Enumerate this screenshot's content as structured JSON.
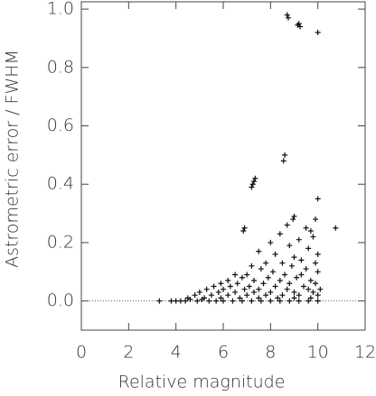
{
  "chart_data": {
    "type": "scatter",
    "xlabel": "Relative magnitude",
    "ylabel": "Astrometric error / FWHM",
    "xlim": [
      0,
      12
    ],
    "ylim": [
      -0.1,
      1.025
    ],
    "xticks": [
      0,
      2,
      4,
      6,
      8,
      10,
      12
    ],
    "yticks": [
      {
        "value": 0,
        "label": "0.0"
      },
      0.2,
      0.4,
      0.6,
      0.8,
      {
        "value": 1,
        "label": "1.0"
      }
    ],
    "reference_line": 0,
    "color": "#111111",
    "x": [
      8.7,
      8.75,
      9.2,
      9.25,
      9.15,
      10.0,
      8.6,
      8.55,
      7.35,
      7.3,
      7.25,
      7.2,
      10.0,
      6.9,
      6.85,
      9.0,
      8.95,
      9.9,
      10.75,
      8.7,
      9.5,
      9.7,
      8.4,
      8.0,
      9.2,
      9.8,
      9.6,
      8.8,
      7.5,
      8.2,
      9.0,
      9.3,
      10.0,
      8.5,
      7.8,
      9.9,
      7.2,
      8.9,
      7.6,
      9.5,
      8.1,
      6.5,
      7.0,
      8.6,
      9.3,
      10.0,
      6.8,
      7.9,
      9.1,
      6.2,
      7.3,
      8.4,
      9.7,
      5.9,
      6.6,
      7.7,
      8.8,
      9.9,
      5.6,
      6.3,
      7.1,
      8.2,
      9.4,
      5.3,
      6.0,
      6.9,
      7.5,
      8.7,
      9.6,
      10.1,
      5.0,
      5.8,
      6.5,
      7.3,
      8.0,
      9.0,
      9.8,
      4.8,
      5.5,
      6.2,
      7.0,
      7.8,
      8.5,
      9.2,
      10.0,
      4.5,
      5.2,
      5.9,
      6.7,
      7.5,
      8.3,
      9.0,
      9.7,
      3.3,
      3.8,
      4.0,
      4.2,
      4.4,
      4.6,
      4.9,
      5.1,
      5.4,
      5.7,
      6.0,
      6.4,
      6.8,
      7.2,
      7.6,
      8.0,
      8.4,
      8.8,
      9.2,
      9.6,
      10.0
    ],
    "y": [
      0.98,
      0.97,
      0.95,
      0.94,
      0.945,
      0.92,
      0.5,
      0.48,
      0.42,
      0.41,
      0.4,
      0.39,
      0.35,
      0.25,
      0.24,
      0.29,
      0.28,
      0.28,
      0.25,
      0.26,
      0.25,
      0.24,
      0.23,
      0.2,
      0.21,
      0.22,
      0.18,
      0.19,
      0.17,
      0.16,
      0.15,
      0.14,
      0.16,
      0.13,
      0.13,
      0.13,
      0.12,
      0.12,
      0.11,
      0.11,
      0.1,
      0.09,
      0.09,
      0.09,
      0.09,
      0.1,
      0.08,
      0.08,
      0.08,
      0.07,
      0.07,
      0.07,
      0.07,
      0.06,
      0.06,
      0.06,
      0.06,
      0.06,
      0.05,
      0.05,
      0.05,
      0.05,
      0.05,
      0.04,
      0.04,
      0.04,
      0.04,
      0.04,
      0.04,
      0.04,
      0.03,
      0.03,
      0.03,
      0.03,
      0.03,
      0.03,
      0.03,
      0.02,
      0.02,
      0.02,
      0.02,
      0.02,
      0.02,
      0.02,
      0.02,
      0.01,
      0.01,
      0.01,
      0.01,
      0.01,
      0.01,
      0.01,
      0.01,
      0.0,
      0.0,
      0.0,
      0.0,
      0.0,
      0.005,
      0.0,
      0.005,
      0.0,
      0.0,
      0.0,
      0.0,
      0.0,
      0.0,
      0.0,
      0.0,
      0.0,
      0.0,
      0.0,
      0.0,
      0.0
    ]
  }
}
